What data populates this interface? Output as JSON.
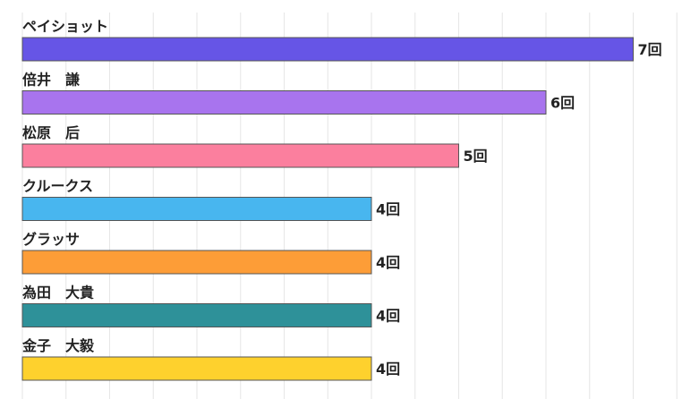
{
  "chart_data": {
    "type": "bar",
    "orientation": "horizontal",
    "categories": [
      "ペイショット",
      "倍井　謙",
      "松原　后",
      "クルークス",
      "グラッサ",
      "為田　大貴",
      "金子　大毅"
    ],
    "values": [
      7,
      6,
      5,
      4,
      4,
      4,
      4
    ],
    "value_suffix": "回",
    "xlim": [
      0,
      7.5
    ],
    "grid": true,
    "colors": [
      "#6655e6",
      "#a874ee",
      "#fb7f9e",
      "#48b6ef",
      "#fd9d37",
      "#2e9199",
      "#fed12d"
    ]
  }
}
